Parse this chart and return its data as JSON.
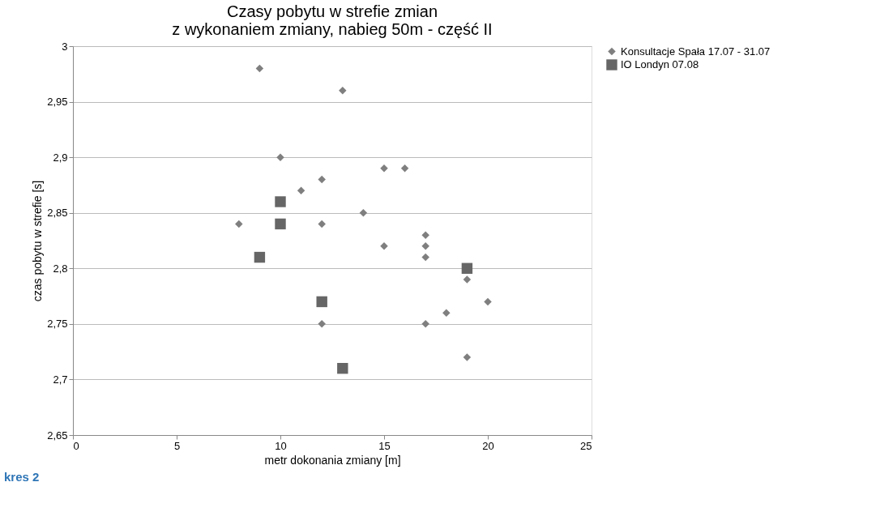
{
  "chart_data": {
    "type": "scatter",
    "title": [
      "Czasy pobytu w strefie zmian",
      "z wykonaniem zmiany, nabieg 50m - część II"
    ],
    "xlabel": "metr  dokonania zmiany [m]",
    "ylabel": "czas pobytu w strefie [s]",
    "xlim": [
      0,
      25
    ],
    "xticks": [
      0,
      5,
      10,
      15,
      20,
      25
    ],
    "ylim": [
      2.65,
      3
    ],
    "yticks": [
      {
        "value": 2.65,
        "label": "2,65"
      },
      {
        "value": 2.7,
        "label": "2,7"
      },
      {
        "value": 2.75,
        "label": "2,75"
      },
      {
        "value": 2.8,
        "label": "2,8"
      },
      {
        "value": 2.85,
        "label": "2,85"
      },
      {
        "value": 2.9,
        "label": "2,9"
      },
      {
        "value": 2.95,
        "label": "2,95"
      },
      {
        "value": 3,
        "label": "3"
      }
    ],
    "grid": "y",
    "legend": "right",
    "annotations": [
      "kres 2"
    ],
    "series": [
      {
        "name": "Konsultacje Spała 17.07 - 31.07",
        "color": "#7f7f7f",
        "marker": "diamond",
        "x": [
          9,
          13,
          10,
          15,
          16,
          11,
          12,
          8,
          12,
          14,
          17,
          17,
          15,
          17,
          19,
          20,
          18,
          12,
          17,
          19
        ],
        "values": [
          2.98,
          2.96,
          2.9,
          2.89,
          2.89,
          2.87,
          2.88,
          2.84,
          2.84,
          2.85,
          2.83,
          2.82,
          2.82,
          2.81,
          2.79,
          2.77,
          2.76,
          2.75,
          2.75,
          2.72
        ]
      },
      {
        "name": "IO Londyn 07.08",
        "color": "#666666",
        "marker": "square",
        "x": [
          10,
          10,
          9,
          12,
          19,
          13
        ],
        "values": [
          2.86,
          2.84,
          2.81,
          2.77,
          2.8,
          2.71
        ]
      }
    ]
  }
}
